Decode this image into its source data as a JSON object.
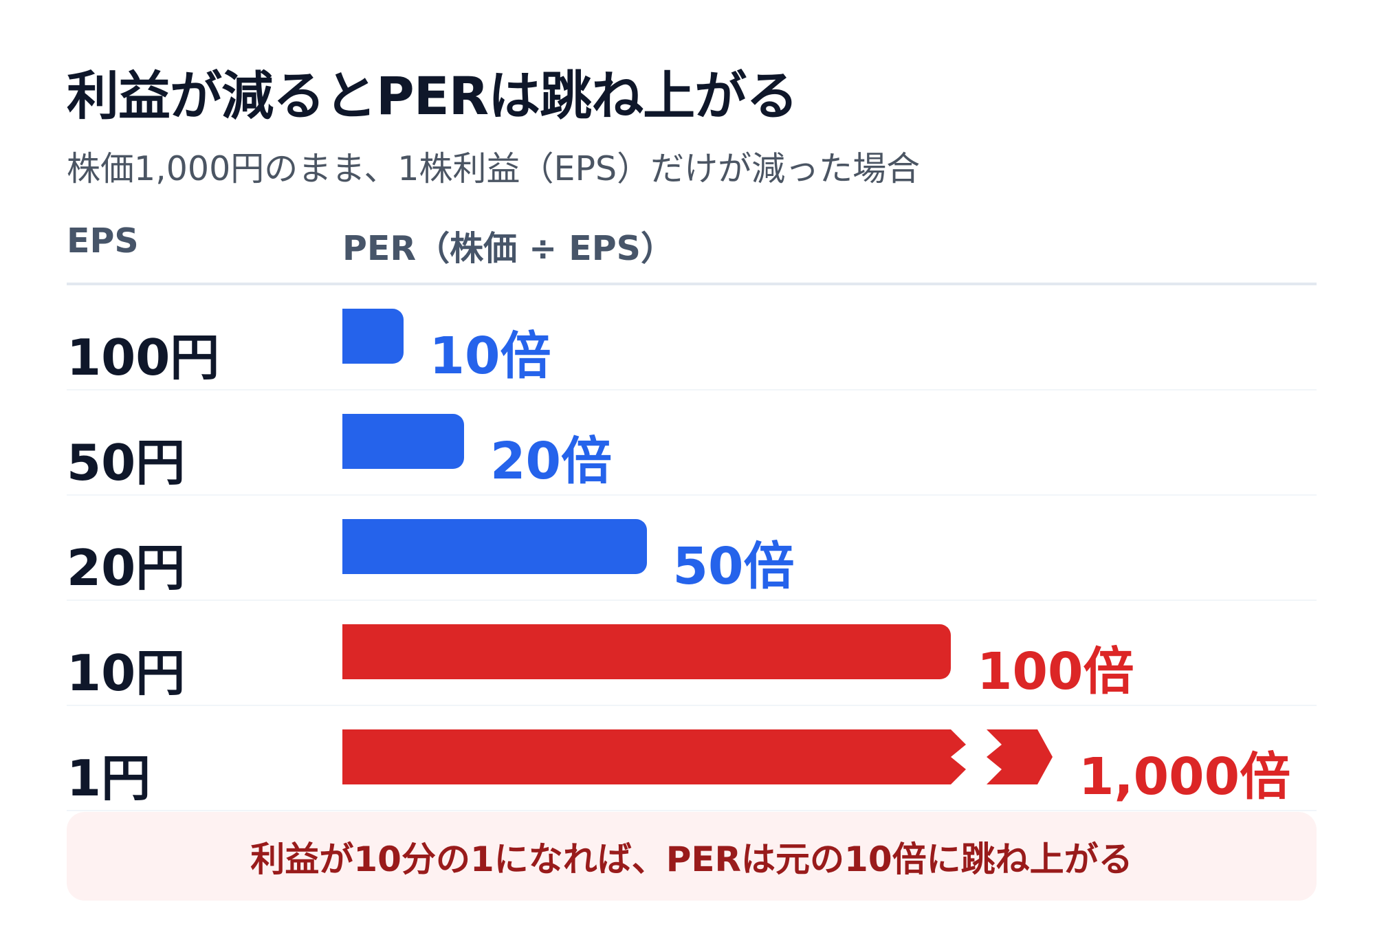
{
  "title": "利益が減るとPERは跳ね上がる",
  "subtitle": "株価1,000円のまま、1株利益（EPS）だけが減った場合",
  "columns": {
    "eps": "EPS",
    "per": "PER（株価 ÷ EPS）"
  },
  "note": "利益が10分の1になれば、PERは元の10倍に跳ね上がる",
  "colors": {
    "normal": "#2563eb",
    "high": "#dc2626"
  },
  "chart_data": {
    "type": "bar",
    "orientation": "horizontal",
    "title": "利益が減るとPERは跳ね上がる",
    "subtitle": "株価1,000円のまま、1株利益（EPS）だけが減った場合",
    "categories": [
      "100円",
      "50円",
      "20円",
      "10円",
      "1円"
    ],
    "values": [
      10,
      20,
      50,
      100,
      1000
    ],
    "value_labels": [
      "10倍",
      "20倍",
      "50倍",
      "100倍",
      "1,000倍"
    ],
    "bar_colors": [
      "#2563eb",
      "#2563eb",
      "#2563eb",
      "#dc2626",
      "#dc2626"
    ],
    "axis_break": {
      "category": "1円",
      "note": "bar truncated with break marker"
    },
    "xlim": [
      0,
      100
    ]
  }
}
